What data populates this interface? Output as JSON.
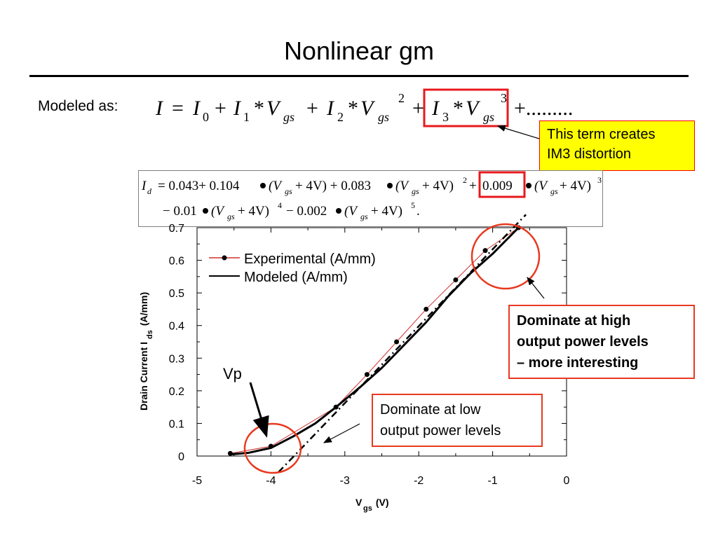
{
  "slide": {
    "title": "Nonlinear gm",
    "modeled_as": "Modeled as:",
    "equation": {
      "I": "I",
      "eq": "=",
      "I0": "I",
      "sub0": "0",
      "plus": "+",
      "I1": "I",
      "sub1": "1",
      "star": "*",
      "V": "V",
      "gs": "gs",
      "I2": "I",
      "sub2": "2",
      "pow2": "2",
      "I3": "I",
      "sub3": "3",
      "pow3": "3",
      "tail": "+........."
    },
    "callout_im3": {
      "line1": "This term creates",
      "line2": "IM3 distortion"
    },
    "fit_formula": {
      "line1": {
        "Id": "I",
        "d": "d",
        "part1": "= 0.043+ 0.104",
        "part2": "(V",
        "gs": "gs",
        "part3": "+ 4V) + 0.083",
        "part4": "(V",
        "part5": "+ 4V)",
        "sq": "2",
        "plus": "+",
        "boxed": "0.009",
        "part6": "(V",
        "part7": "+ 4V)",
        "cube": "3"
      },
      "line2": {
        "part1": "− 0.01",
        "part2": "(V",
        "gs": "gs",
        "part3": "+ 4V)",
        "p4": "4",
        "part4": "− 0.002",
        "part5": "(V",
        "part6": "+ 4V)",
        "p5": "5",
        "end": "."
      }
    },
    "callout_high": {
      "line1": "Dominate at high",
      "line2": "output power levels",
      "line3": "– more interesting"
    },
    "callout_low": {
      "line1": "Dominate at low",
      "line2": "output power levels"
    },
    "vp_label": "Vp"
  },
  "chart_data": {
    "type": "line",
    "xlabel": "V",
    "xlabel_sub": "gs",
    "xlabel_tail": " (V)",
    "ylabel": "Drain Current I",
    "ylabel_sub": "ds",
    "ylabel_tail": " (A/mm)",
    "xlim": [
      -5,
      0
    ],
    "ylim": [
      0,
      0.7
    ],
    "x_ticks": [
      -5,
      -4,
      -3,
      -2,
      -1,
      0
    ],
    "x_tick_labels": [
      "-5",
      "-4",
      "-3",
      "-2",
      "-1",
      "0"
    ],
    "y_ticks": [
      0,
      0.1,
      0.2,
      0.3,
      0.4,
      0.5,
      0.6,
      0.7
    ],
    "y_tick_labels": [
      "0",
      "0.1",
      "0.2",
      "0.3",
      "0.4",
      "0.5",
      "0.6",
      "0.7"
    ],
    "legend_position": "top-left",
    "grid": false,
    "series": [
      {
        "name": "Experimental (A/mm)",
        "color": "#d0312d",
        "marker": "circle",
        "x": [
          -4.55,
          -4.0,
          -3.12,
          -2.7,
          -2.3,
          -1.9,
          -1.5,
          -1.1,
          -0.65
        ],
        "y": [
          0.008,
          0.03,
          0.15,
          0.25,
          0.35,
          0.45,
          0.54,
          0.63,
          0.7
        ]
      },
      {
        "name": "Modeled (A/mm)",
        "color": "#000000",
        "x": [
          -4.55,
          -4.3,
          -4.0,
          -3.7,
          -3.4,
          -3.12,
          -2.8,
          -2.5,
          -2.2,
          -1.9,
          -1.6,
          -1.3,
          -1.0,
          -0.65
        ],
        "y": [
          0.005,
          0.01,
          0.025,
          0.06,
          0.1,
          0.15,
          0.21,
          0.27,
          0.34,
          0.41,
          0.49,
          0.56,
          0.62,
          0.7
        ]
      },
      {
        "name": "",
        "color": "#000000",
        "dash": "dash-dot",
        "x": [
          -3.9,
          -0.55
        ],
        "y": [
          -0.05,
          0.74
        ]
      }
    ],
    "annotations": [
      "Vp",
      "Dominate at low output power levels",
      "Dominate at high output power levels – more interesting"
    ]
  }
}
